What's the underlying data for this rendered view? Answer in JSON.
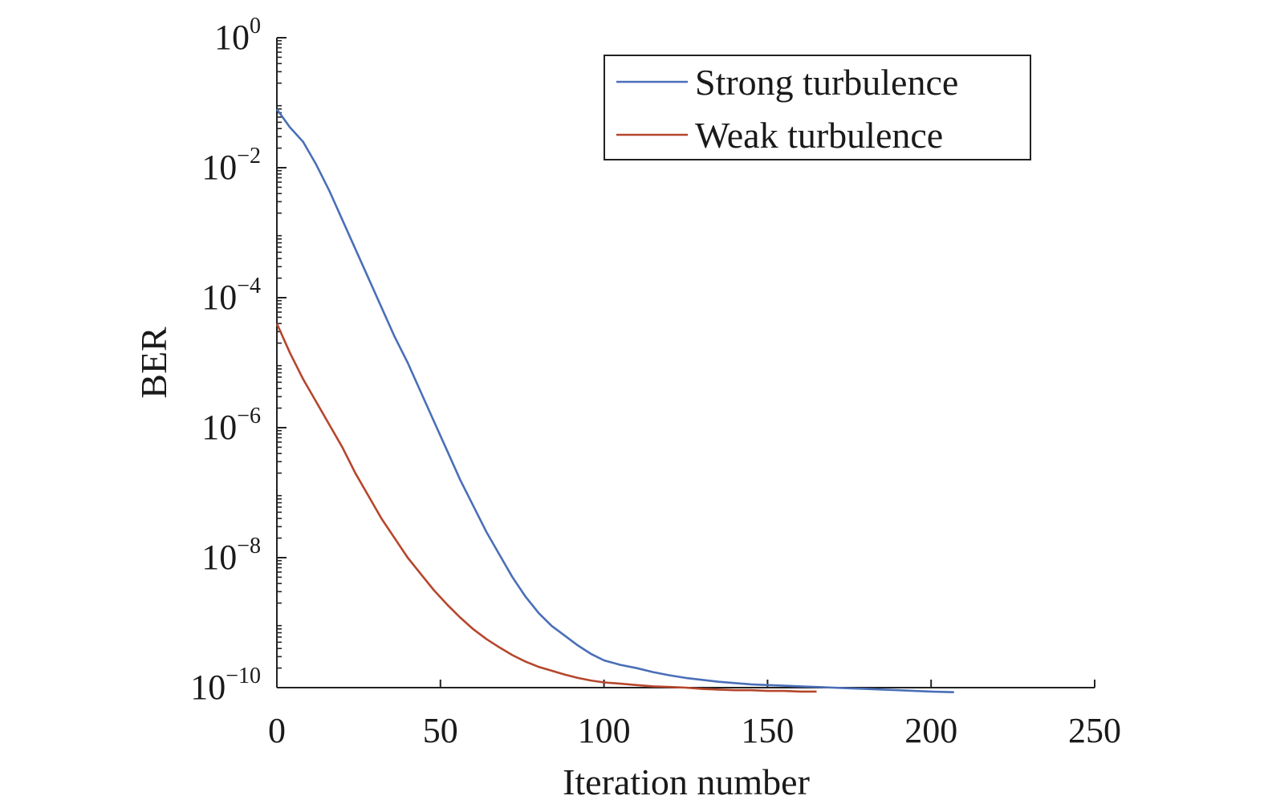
{
  "chart_data": {
    "type": "line",
    "title": "",
    "xlabel": "Iteration number",
    "ylabel": "BER",
    "xlim": [
      0,
      250
    ],
    "xticks": [
      0,
      50,
      100,
      150,
      200,
      250
    ],
    "xtick_labels": [
      "0",
      "50",
      "100",
      "150",
      "200",
      "250"
    ],
    "yscale": "log",
    "ylim_log10": [
      -10,
      0
    ],
    "yticks_exp": [
      0,
      -2,
      -4,
      -6,
      -8,
      -10
    ],
    "ytick_bases": [
      "10",
      "10",
      "10",
      "10",
      "10",
      "10"
    ],
    "ytick_exponents": [
      "0",
      "−2",
      "−4",
      "−6",
      "−8",
      "−10"
    ],
    "grid": false,
    "legend_position": "top-right",
    "series": [
      {
        "name": "Strong turbulence",
        "color": "#4a6fb8",
        "x": [
          0,
          4,
          8,
          12,
          16,
          20,
          24,
          28,
          32,
          36,
          40,
          44,
          48,
          52,
          56,
          60,
          64,
          68,
          72,
          76,
          80,
          84,
          88,
          92,
          96,
          100,
          105,
          110,
          115,
          120,
          125,
          130,
          135,
          140,
          145,
          150,
          155,
          160,
          165,
          170,
          175,
          180,
          185,
          190,
          195,
          200,
          207
        ],
        "log10_y": [
          -1.1,
          -1.38,
          -1.6,
          -1.95,
          -2.35,
          -2.8,
          -3.25,
          -3.7,
          -4.15,
          -4.6,
          -5.0,
          -5.45,
          -5.9,
          -6.35,
          -6.8,
          -7.2,
          -7.6,
          -7.95,
          -8.3,
          -8.6,
          -8.85,
          -9.05,
          -9.2,
          -9.35,
          -9.48,
          -9.58,
          -9.65,
          -9.7,
          -9.76,
          -9.81,
          -9.85,
          -9.88,
          -9.91,
          -9.93,
          -9.95,
          -9.96,
          -9.97,
          -9.98,
          -9.99,
          -10.0,
          -10.01,
          -10.02,
          -10.03,
          -10.04,
          -10.05,
          -10.06,
          -10.07
        ]
      },
      {
        "name": "Weak turbulence",
        "color": "#b6462c",
        "x": [
          0,
          4,
          8,
          12,
          16,
          20,
          24,
          28,
          32,
          36,
          40,
          44,
          48,
          52,
          56,
          60,
          64,
          68,
          72,
          76,
          80,
          84,
          88,
          92,
          96,
          100,
          105,
          110,
          115,
          120,
          125,
          130,
          135,
          140,
          145,
          150,
          155,
          160,
          165
        ],
        "log10_y": [
          -4.4,
          -4.85,
          -5.25,
          -5.6,
          -5.95,
          -6.3,
          -6.7,
          -7.05,
          -7.4,
          -7.7,
          -8.0,
          -8.25,
          -8.5,
          -8.72,
          -8.92,
          -9.1,
          -9.25,
          -9.38,
          -9.5,
          -9.6,
          -9.68,
          -9.74,
          -9.8,
          -9.85,
          -9.89,
          -9.92,
          -9.94,
          -9.96,
          -9.98,
          -9.99,
          -10.0,
          -10.02,
          -10.03,
          -10.04,
          -10.04,
          -10.05,
          -10.05,
          -10.06,
          -10.06
        ]
      }
    ]
  }
}
